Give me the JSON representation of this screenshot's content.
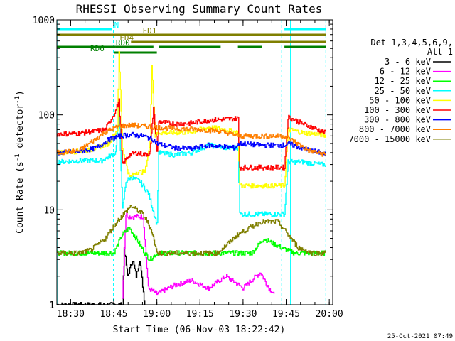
{
  "chart_data": {
    "type": "line",
    "title": "RHESSI Observing Summary Count Rates",
    "xlabel": "Start Time (06-Nov-03 18:22:42)",
    "ylabel_main": "Count Rate (s",
    "ylabel_sup1": "-1",
    "ylabel_mid": " detector",
    "ylabel_sup2": "-1",
    "ylabel_end": ")",
    "yscale": "log",
    "ylim": [
      1,
      1000
    ],
    "xlim_min": [
      18.42,
      20.02
    ],
    "y_ticks": [
      {
        "value": 1,
        "label": "1"
      },
      {
        "value": 10,
        "label": "10"
      },
      {
        "value": 100,
        "label": "100"
      },
      {
        "value": 1000,
        "label": "1000"
      }
    ],
    "x_ticks": [
      {
        "value": 18.5,
        "label": "18:30"
      },
      {
        "value": 18.75,
        "label": "18:45"
      },
      {
        "value": 19.0,
        "label": "19:00"
      },
      {
        "value": 19.25,
        "label": "19:15"
      },
      {
        "value": 19.5,
        "label": "19:30"
      },
      {
        "value": 19.75,
        "label": "19:45"
      },
      {
        "value": 20.0,
        "label": "20:00"
      }
    ],
    "detector_info": [
      "Det 1,3,4,5,6,9,",
      "Att 1"
    ],
    "timestamp": "25-Oct-2021 07:49",
    "series": [
      {
        "name": "3 - 6 keV",
        "color": "#000000",
        "x": [
          18.42,
          18.8,
          18.81,
          18.83,
          18.86,
          18.88,
          18.9,
          18.93
        ],
        "values": [
          1.0,
          1.0,
          4.0,
          2.0,
          3.0,
          2.0,
          3.0,
          1.0
        ]
      },
      {
        "name": "6 - 12 keV",
        "color": "#ff00ff",
        "x": [
          18.8,
          18.82,
          18.84,
          18.88,
          18.92,
          18.95,
          19.0,
          19.1,
          19.2,
          19.3,
          19.4,
          19.5,
          19.6,
          19.65,
          19.68
        ],
        "values": [
          1.2,
          9.0,
          8.5,
          8.5,
          8.5,
          1.5,
          1.3,
          1.6,
          1.8,
          1.5,
          2.0,
          1.5,
          2.2,
          1.5,
          1.3
        ]
      },
      {
        "name": "12 - 25 keV",
        "color": "#00ff00",
        "x": [
          18.42,
          18.75,
          18.8,
          18.84,
          18.88,
          18.93,
          18.96,
          19.0,
          19.2,
          19.35,
          19.45,
          19.55,
          19.62,
          19.72,
          19.8,
          19.9,
          19.98
        ],
        "values": [
          3.5,
          3.5,
          5.5,
          6.5,
          5.0,
          3.5,
          3.0,
          3.5,
          3.5,
          3.5,
          3.5,
          3.5,
          5.0,
          4.0,
          3.5,
          3.5,
          3.5
        ]
      },
      {
        "name": "25 - 50 keV",
        "color": "#00ffff",
        "x": [
          18.42,
          18.55,
          18.68,
          18.76,
          18.78,
          18.8,
          18.82,
          18.85,
          18.9,
          18.95,
          19.0,
          19.01,
          19.1,
          19.2,
          19.3,
          19.4,
          19.47,
          19.48,
          19.55,
          19.65,
          19.74,
          19.76,
          19.85,
          19.95,
          19.98
        ],
        "values": [
          32,
          33,
          33,
          40,
          120,
          10,
          20,
          22,
          20,
          15,
          7,
          40,
          38,
          40,
          48,
          45,
          45,
          9,
          9,
          9,
          9,
          32,
          32,
          30,
          30
        ]
      },
      {
        "name": "50 - 100 keV",
        "color": "#ffff00",
        "x": [
          18.42,
          18.6,
          18.72,
          18.77,
          18.78,
          18.8,
          18.84,
          18.88,
          18.93,
          18.96,
          18.97,
          18.99,
          19.01,
          19.1,
          19.2,
          19.3,
          19.4,
          19.47,
          19.48,
          19.6,
          19.74,
          19.76,
          19.85,
          19.95,
          19.98
        ],
        "values": [
          40,
          42,
          50,
          70,
          450,
          45,
          22,
          25,
          25,
          50,
          350,
          60,
          65,
          65,
          66,
          74,
          70,
          65,
          18,
          18,
          18,
          70,
          65,
          62,
          60
        ]
      },
      {
        "name": "100 - 300 keV",
        "color": "#ff0000",
        "x": [
          18.42,
          18.55,
          18.7,
          18.76,
          18.78,
          18.8,
          18.84,
          18.88,
          18.93,
          18.96,
          18.98,
          19.0,
          19.01,
          19.1,
          19.2,
          19.3,
          19.4,
          19.47,
          19.48,
          19.6,
          19.74,
          19.76,
          19.85,
          19.95,
          19.98
        ],
        "values": [
          63,
          64,
          70,
          110,
          140,
          30,
          38,
          40,
          38,
          40,
          120,
          40,
          85,
          80,
          82,
          88,
          90,
          92,
          28,
          28,
          28,
          95,
          80,
          68,
          64
        ]
      },
      {
        "name": "300 - 800 keV",
        "color": "#0000ff",
        "x": [
          18.42,
          18.55,
          18.65,
          18.72,
          18.78,
          18.85,
          18.92,
          18.98,
          19.0,
          19.1,
          19.2,
          19.3,
          19.45,
          19.48,
          19.6,
          19.74,
          19.76,
          19.85,
          19.95,
          19.98
        ],
        "values": [
          40,
          41,
          45,
          55,
          60,
          62,
          60,
          55,
          50,
          45,
          44,
          48,
          45,
          50,
          48,
          48,
          50,
          44,
          40,
          38
        ]
      },
      {
        "name": "800 - 7000 keV",
        "color": "#ff7f00",
        "x": [
          18.42,
          18.55,
          18.62,
          18.7,
          18.78,
          18.85,
          18.92,
          19.0,
          19.1,
          19.25,
          19.35,
          19.48,
          19.6,
          19.74,
          19.8,
          19.88,
          19.98
        ],
        "values": [
          40,
          42,
          52,
          66,
          76,
          78,
          76,
          74,
          72,
          70,
          68,
          60,
          60,
          60,
          52,
          42,
          38
        ]
      },
      {
        "name": "7000 - 15000 keV",
        "color": "#7f7f00",
        "x": [
          18.42,
          18.55,
          18.62,
          18.7,
          18.78,
          18.85,
          18.92,
          18.97,
          19.0,
          19.1,
          19.2,
          19.35,
          19.47,
          19.6,
          19.7,
          19.76,
          19.82,
          19.9,
          19.98
        ],
        "values": [
          3.5,
          3.5,
          3.8,
          5.0,
          8.0,
          11.0,
          9.0,
          6.0,
          3.5,
          3.5,
          3.5,
          3.5,
          5.5,
          7.5,
          7.5,
          5.5,
          4.0,
          3.5,
          3.5
        ]
      }
    ],
    "flag_bars": [
      {
        "label": "N",
        "color": "#00ffff",
        "level": 1,
        "segments": [
          [
            18.42,
            18.74
          ],
          [
            19.74,
            19.98
          ]
        ]
      },
      {
        "label": "FD1",
        "color": "#7f7f00",
        "level": 2,
        "segments": [
          [
            18.42,
            19.98
          ]
        ]
      },
      {
        "label": "FD4",
        "color": "#7f7f00",
        "level": 3,
        "segments": [
          [
            18.85,
            19.98
          ]
        ]
      },
      {
        "label": "RD0",
        "color": "#008000",
        "level": 4,
        "segments": [
          [
            18.42,
            18.76
          ],
          [
            18.76,
            18.98
          ],
          [
            19.01,
            19.37
          ],
          [
            19.47,
            19.61
          ],
          [
            19.74,
            19.98
          ]
        ]
      },
      {
        "label": "RD6",
        "color": "#008000",
        "level": 5,
        "segments": [
          [
            18.75,
            19.0
          ]
        ]
      }
    ],
    "vertical_lines": [
      {
        "x": 18.748,
        "style": "dashed"
      },
      {
        "x": 19.724,
        "style": "dashed"
      },
      {
        "x": 19.98,
        "style": "dashed"
      },
      {
        "x": 18.425,
        "style": "solid"
      },
      {
        "x": 19.775,
        "style": "solid"
      }
    ]
  }
}
